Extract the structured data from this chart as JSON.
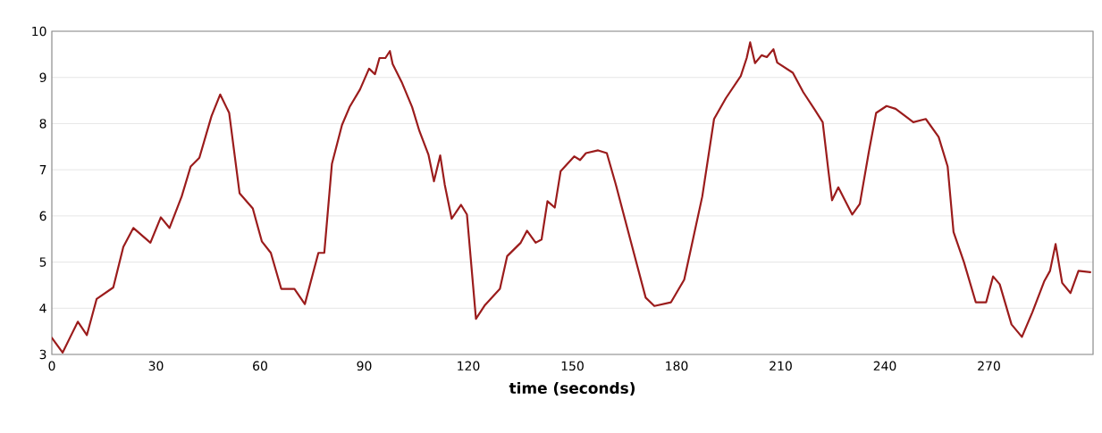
{
  "chart_data": {
    "type": "line",
    "xlabel": "time (seconds)",
    "xlim": [
      0,
      300
    ],
    "xticks": [
      0,
      30,
      60,
      90,
      120,
      150,
      180,
      210,
      240,
      270
    ],
    "ylim": [
      3,
      10
    ],
    "yticks": [
      3,
      4,
      5,
      6,
      7,
      8,
      9,
      10
    ],
    "grid": "y",
    "marker": "none",
    "line_style": "solid",
    "series": [
      {
        "color": "#9b1c1c",
        "x": [
          0,
          3.1,
          5.2,
          7.5,
          10.1,
          12.9,
          17.7,
          20.6,
          23.5,
          28.4,
          31.4,
          33.9,
          37.4,
          40.0,
          42.5,
          46.0,
          48.5,
          51.1,
          54.1,
          57.9,
          60.5,
          63.1,
          66.1,
          69.9,
          72.9,
          76.8,
          78.5,
          80.7,
          83.6,
          85.8,
          88.8,
          91.4,
          93.1,
          94.4,
          96.1,
          97.4,
          98.2,
          100.8,
          103.8,
          105.9,
          108.5,
          110.1,
          111.9,
          113.2,
          115.2,
          117.9,
          119.6,
          122.2,
          124.8,
          129.1,
          131.2,
          135.1,
          136.9,
          139.4,
          141.1,
          142.8,
          144.9,
          146.6,
          150.5,
          152.2,
          153.9,
          157.4,
          159.9,
          162.5,
          166.8,
          171.1,
          173.6,
          178.4,
          182.2,
          184.8,
          187.4,
          190.8,
          194.2,
          198.5,
          200.2,
          201.2,
          202.6,
          204.5,
          206.0,
          207.9,
          209.0,
          213.5,
          216.5,
          219.9,
          222.1,
          223.8,
          224.8,
          226.6,
          230.6,
          232.8,
          235.4,
          237.5,
          240.5,
          243.1,
          248.2,
          251.8,
          255.5,
          258.1,
          259.8,
          262.8,
          266.2,
          269.2,
          271.2,
          273.1,
          276.5,
          279.5,
          282.5,
          285.9,
          287.6,
          289.2,
          291.1,
          293.5,
          295.8,
          299.2
        ],
        "values": [
          3.36,
          3.04,
          3.36,
          3.71,
          3.42,
          4.2,
          4.45,
          5.33,
          5.74,
          5.42,
          5.97,
          5.74,
          6.42,
          7.07,
          7.26,
          8.16,
          8.63,
          8.23,
          6.49,
          6.16,
          5.45,
          5.2,
          4.42,
          4.42,
          4.09,
          5.2,
          5.2,
          7.13,
          7.97,
          8.36,
          8.74,
          9.19,
          9.07,
          9.42,
          9.42,
          9.57,
          9.29,
          8.9,
          8.36,
          7.84,
          7.33,
          6.75,
          7.31,
          6.68,
          5.94,
          6.24,
          6.03,
          3.77,
          4.07,
          4.42,
          5.13,
          5.42,
          5.68,
          5.42,
          5.49,
          6.32,
          6.18,
          6.97,
          7.29,
          7.21,
          7.36,
          7.42,
          7.36,
          6.68,
          5.45,
          4.23,
          4.05,
          4.13,
          4.62,
          5.52,
          6.42,
          8.1,
          8.55,
          9.03,
          9.42,
          9.76,
          9.31,
          9.48,
          9.44,
          9.61,
          9.32,
          9.1,
          8.68,
          8.29,
          8.03,
          6.94,
          6.34,
          6.62,
          6.03,
          6.26,
          7.39,
          8.23,
          8.38,
          8.32,
          8.03,
          8.1,
          7.71,
          7.07,
          5.65,
          5.0,
          4.13,
          4.13,
          4.69,
          4.52,
          3.65,
          3.38,
          3.91,
          4.58,
          4.81,
          5.39,
          4.55,
          4.33,
          4.81,
          4.78
        ]
      }
    ]
  }
}
